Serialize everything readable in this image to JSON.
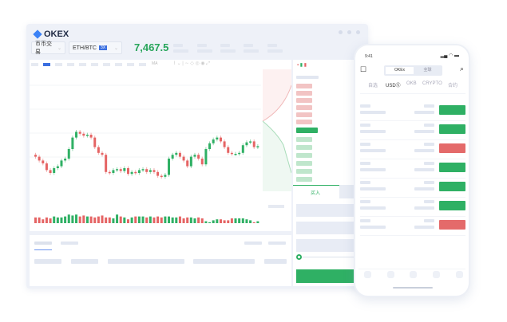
{
  "window": {
    "logo_text": "OKEX",
    "market_select": "币币交易",
    "pair_select": "ETH/BTC",
    "leverage_badge": "3X",
    "last_price": "7,467.5"
  },
  "toolbar": {
    "indicator": "MA"
  },
  "order_panel": {
    "buy_tab": "买入"
  },
  "phone": {
    "time": "9:41",
    "segment": [
      "OKEx",
      "全球"
    ],
    "tabs": [
      "自选",
      "USDⓈ",
      "OKB",
      "CRYPTO",
      "合约"
    ],
    "active_tab": 1,
    "rows": [
      "up",
      "up",
      "down",
      "up",
      "up",
      "up",
      "down"
    ]
  },
  "colors": {
    "up": "#2fb064",
    "down": "#e56464",
    "accent": "#3b6fe0"
  },
  "candles": {
    "closes": [
      62,
      58,
      55,
      48,
      45,
      50,
      52,
      58,
      60,
      70,
      82,
      88,
      86,
      84,
      85,
      82,
      72,
      66,
      64,
      46,
      45,
      48,
      49,
      47,
      50,
      44,
      46,
      45,
      48,
      49,
      46,
      48,
      46,
      42,
      41,
      43,
      60,
      64,
      66,
      62,
      58,
      52,
      62,
      64,
      60,
      54,
      70,
      76,
      80,
      82,
      78,
      72,
      66,
      65,
      65,
      66,
      74,
      77,
      78,
      72,
      73
    ],
    "volumes": [
      6,
      6,
      4,
      6,
      5,
      7,
      6,
      6,
      7,
      9,
      8,
      9,
      7,
      8,
      7,
      7,
      6,
      7,
      8,
      6,
      6,
      5,
      9,
      7,
      6,
      4,
      6,
      7,
      7,
      7,
      6,
      7,
      6,
      7,
      6,
      7,
      7,
      6,
      6,
      7,
      5,
      6,
      6,
      5,
      6,
      5,
      2,
      1,
      3,
      4,
      4,
      3,
      3,
      5,
      5,
      5,
      5,
      4,
      3,
      1,
      2
    ]
  }
}
